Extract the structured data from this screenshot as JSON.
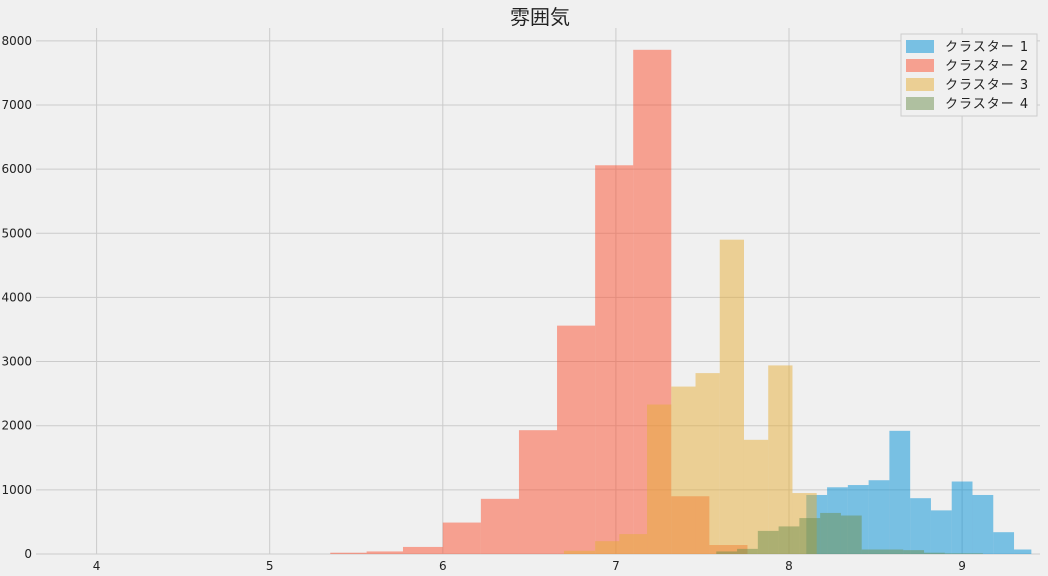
{
  "chart_data": {
    "type": "bar",
    "title": "雰囲気",
    "xlabel": "",
    "ylabel": "",
    "xlim": [
      3.65,
      9.45
    ],
    "ylim": [
      0,
      8200
    ],
    "xticks": [
      "4",
      "5",
      "6",
      "7",
      "8",
      "9"
    ],
    "yticks": [
      "0",
      "1000",
      "2000",
      "3000",
      "4000",
      "5000",
      "6000",
      "7000",
      "8000"
    ],
    "grid": true,
    "legend_position": "top-right",
    "series": [
      {
        "name": "クラスター 1",
        "color": "#008fd5",
        "bins": [
          {
            "x0": 8.1,
            "x1": 8.22,
            "y": 920
          },
          {
            "x0": 8.22,
            "x1": 8.34,
            "y": 1040
          },
          {
            "x0": 8.34,
            "x1": 8.46,
            "y": 1075
          },
          {
            "x0": 8.46,
            "x1": 8.58,
            "y": 1150
          },
          {
            "x0": 8.58,
            "x1": 8.7,
            "y": 1920
          },
          {
            "x0": 8.7,
            "x1": 8.82,
            "y": 870
          },
          {
            "x0": 8.82,
            "x1": 8.94,
            "y": 680
          },
          {
            "x0": 8.94,
            "x1": 9.06,
            "y": 1130
          },
          {
            "x0": 9.06,
            "x1": 9.18,
            "y": 920
          },
          {
            "x0": 9.18,
            "x1": 9.3,
            "y": 340
          },
          {
            "x0": 9.3,
            "x1": 9.4,
            "y": 70
          }
        ]
      },
      {
        "name": "クラスター 2",
        "color": "#fc4f30",
        "bins": [
          {
            "x0": 5.35,
            "x1": 5.56,
            "y": 20
          },
          {
            "x0": 5.56,
            "x1": 5.77,
            "y": 40
          },
          {
            "x0": 5.77,
            "x1": 6.0,
            "y": 110
          },
          {
            "x0": 6.0,
            "x1": 6.22,
            "y": 490
          },
          {
            "x0": 6.22,
            "x1": 6.44,
            "y": 860
          },
          {
            "x0": 6.44,
            "x1": 6.66,
            "y": 1930
          },
          {
            "x0": 6.66,
            "x1": 6.88,
            "y": 3560
          },
          {
            "x0": 6.88,
            "x1": 7.1,
            "y": 6060
          },
          {
            "x0": 7.1,
            "x1": 7.32,
            "y": 7860
          },
          {
            "x0": 7.32,
            "x1": 7.54,
            "y": 900
          },
          {
            "x0": 7.54,
            "x1": 7.76,
            "y": 140
          }
        ]
      },
      {
        "name": "クラスター 3",
        "color": "#e5ae38",
        "bins": [
          {
            "x0": 6.7,
            "x1": 6.88,
            "y": 50
          },
          {
            "x0": 6.88,
            "x1": 7.02,
            "y": 200
          },
          {
            "x0": 7.02,
            "x1": 7.18,
            "y": 310
          },
          {
            "x0": 7.18,
            "x1": 7.32,
            "y": 2330
          },
          {
            "x0": 7.32,
            "x1": 7.46,
            "y": 2610
          },
          {
            "x0": 7.46,
            "x1": 7.6,
            "y": 2820
          },
          {
            "x0": 7.6,
            "x1": 7.74,
            "y": 4900
          },
          {
            "x0": 7.74,
            "x1": 7.88,
            "y": 1780
          },
          {
            "x0": 7.88,
            "x1": 8.02,
            "y": 2940
          },
          {
            "x0": 8.02,
            "x1": 8.16,
            "y": 950
          }
        ]
      },
      {
        "name": "クラスター 4",
        "color": "#6d904f",
        "bins": [
          {
            "x0": 7.58,
            "x1": 7.7,
            "y": 40
          },
          {
            "x0": 7.7,
            "x1": 7.82,
            "y": 80
          },
          {
            "x0": 7.82,
            "x1": 7.94,
            "y": 360
          },
          {
            "x0": 7.94,
            "x1": 8.06,
            "y": 430
          },
          {
            "x0": 8.06,
            "x1": 8.18,
            "y": 560
          },
          {
            "x0": 8.18,
            "x1": 8.3,
            "y": 640
          },
          {
            "x0": 8.3,
            "x1": 8.42,
            "y": 600
          },
          {
            "x0": 8.42,
            "x1": 8.54,
            "y": 70
          },
          {
            "x0": 8.54,
            "x1": 8.66,
            "y": 70
          },
          {
            "x0": 8.66,
            "x1": 8.78,
            "y": 60
          },
          {
            "x0": 8.78,
            "x1": 8.9,
            "y": 20
          },
          {
            "x0": 8.9,
            "x1": 9.02,
            "y": 10
          },
          {
            "x0": 9.02,
            "x1": 9.12,
            "y": 10
          }
        ]
      }
    ]
  }
}
